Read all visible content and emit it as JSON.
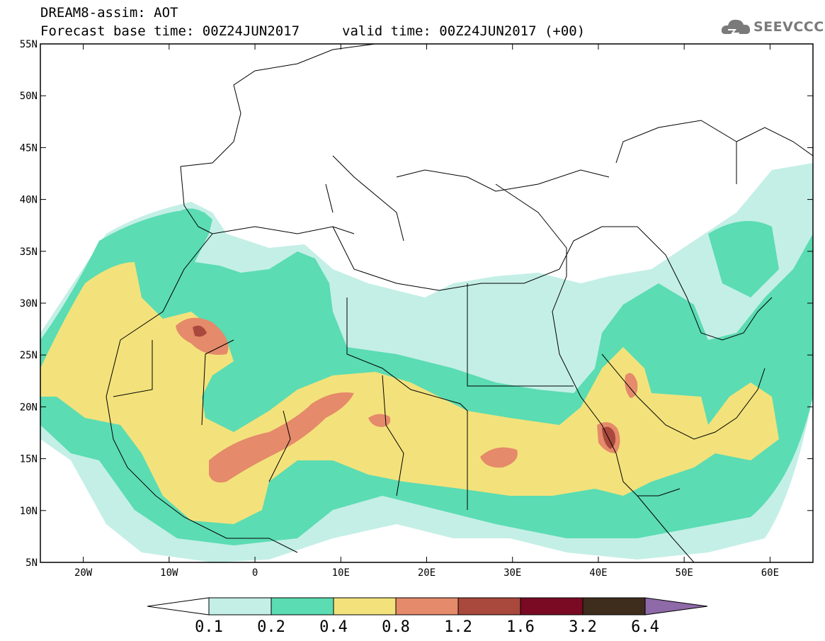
{
  "header": {
    "title": "DREAM8-assim: AOT",
    "base_time": "Forecast base time: 00Z24JUN2017",
    "valid_time": "valid time: 00Z24JUN2017 (+00)"
  },
  "logo": {
    "text": "SEEVCCC",
    "icon": "cloud-icon"
  },
  "axes": {
    "lat_labels": [
      "55N",
      "50N",
      "45N",
      "40N",
      "35N",
      "30N",
      "25N",
      "20N",
      "15N",
      "10N",
      "5N"
    ],
    "lon_labels": [
      "20W",
      "10W",
      "0",
      "10E",
      "20E",
      "30E",
      "40E",
      "50E",
      "60E"
    ],
    "lon_range": [
      -25,
      65
    ],
    "lat_range": [
      5,
      55
    ]
  },
  "colorbar": {
    "levels": [
      "0.1",
      "0.2",
      "0.4",
      "0.8",
      "1.2",
      "1.6",
      "3.2",
      "6.4"
    ],
    "colors": [
      "#ffffff",
      "#c4efe6",
      "#5bdcb2",
      "#f3e27b",
      "#e58a6a",
      "#a9483d",
      "#7a0a24",
      "#3e2c1c",
      "#8e6aa8"
    ]
  }
}
